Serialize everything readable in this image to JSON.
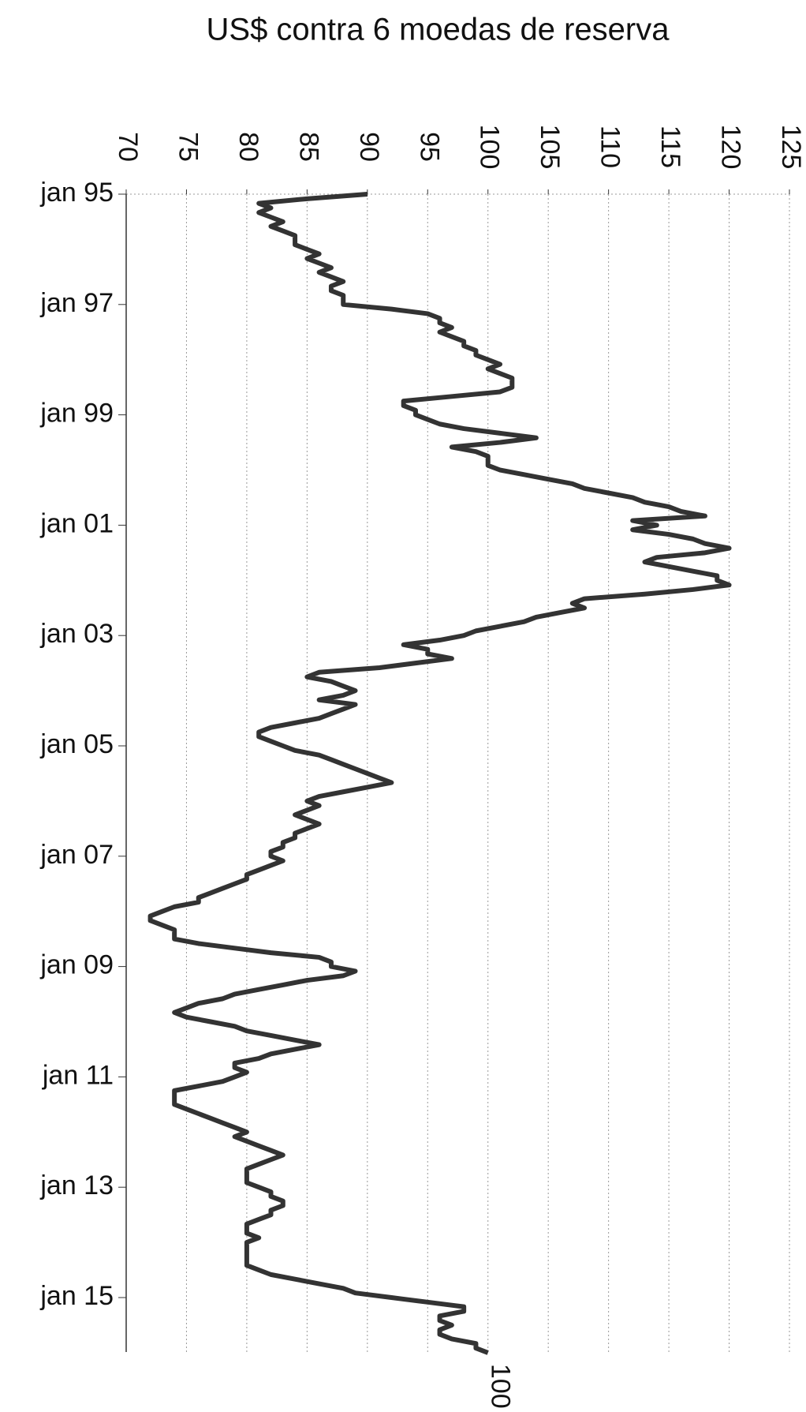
{
  "chart_data": {
    "type": "line",
    "orientation": "vertical-time",
    "title": "US$ contra 6 moedas de reserva",
    "categories": [
      "jan 95",
      null,
      null,
      null,
      null,
      null,
      null,
      null,
      null,
      null,
      null,
      null,
      null,
      null,
      null,
      null,
      null,
      null,
      null,
      null,
      null,
      null,
      null,
      null,
      "jan 97",
      null,
      null,
      null,
      null,
      null,
      null,
      null,
      null,
      null,
      null,
      null,
      null,
      null,
      null,
      null,
      null,
      null,
      null,
      null,
      null,
      null,
      null,
      null,
      "jan 99",
      null,
      null,
      null,
      null,
      null,
      null,
      null,
      null,
      null,
      null,
      null,
      null,
      null,
      null,
      null,
      null,
      null,
      null,
      null,
      null,
      null,
      null,
      null,
      "jan 01",
      null,
      null,
      null,
      null,
      null,
      null,
      null,
      null,
      null,
      null,
      null,
      null,
      null,
      null,
      null,
      null,
      null,
      null,
      null,
      null,
      null,
      null,
      null,
      "jan 03",
      null,
      null,
      null,
      null,
      null,
      null,
      null,
      null,
      null,
      null,
      null,
      null,
      null,
      null,
      null,
      null,
      null,
      null,
      null,
      null,
      null,
      null,
      null,
      "jan 05",
      null,
      null,
      null,
      null,
      null,
      null,
      null,
      null,
      null,
      null,
      null,
      null,
      null,
      null,
      null,
      null,
      null,
      null,
      null,
      null,
      null,
      null,
      null,
      "jan 07",
      null,
      null,
      null,
      null,
      null,
      null,
      null,
      null,
      null,
      null,
      null,
      null,
      null,
      null,
      null,
      null,
      null,
      null,
      null,
      null,
      null,
      null,
      null,
      "jan 09",
      null,
      null,
      null,
      null,
      null,
      null,
      null,
      null,
      null,
      null,
      null,
      null,
      null,
      null,
      null,
      null,
      null,
      null,
      null,
      null,
      null,
      null,
      null,
      "jan 11",
      null,
      null,
      null,
      null,
      null,
      null,
      null,
      null,
      null,
      null,
      null,
      null,
      null,
      null,
      null,
      null,
      null,
      null,
      null,
      null,
      null,
      null,
      null,
      "jan 13",
      null,
      null,
      null,
      null,
      null,
      null,
      null,
      null,
      null,
      null,
      null,
      null,
      null,
      null,
      null,
      null,
      null,
      null,
      null,
      null,
      null,
      null,
      null,
      "jan 15",
      null,
      null,
      null,
      null,
      null,
      null,
      null,
      null,
      null,
      null,
      null,
      null
    ],
    "values": [
      90,
      85,
      81,
      82,
      81,
      82,
      83,
      82,
      83,
      84,
      84,
      84,
      85,
      86,
      85,
      86,
      87,
      86,
      87,
      88,
      87,
      87,
      88,
      88,
      88,
      92,
      95,
      96,
      96,
      97,
      96,
      97,
      98,
      98,
      99,
      99,
      100,
      101,
      100,
      101,
      102,
      102,
      102,
      101,
      97,
      93,
      93,
      94,
      94,
      95,
      96,
      98,
      101,
      104,
      101,
      97,
      99,
      100,
      100,
      100,
      101,
      103,
      105,
      107,
      108,
      110,
      112,
      113,
      115,
      116,
      118,
      112,
      114,
      112,
      115,
      117,
      118,
      120,
      118,
      114,
      113,
      115,
      117,
      119,
      119,
      120,
      117,
      113,
      108,
      107,
      108,
      106,
      104,
      103,
      101,
      99,
      98,
      96,
      93,
      95,
      95,
      97,
      94,
      91,
      86,
      85,
      87,
      88,
      89,
      88,
      86,
      89,
      88,
      87,
      86,
      84,
      82,
      81,
      81,
      82,
      83,
      84,
      86,
      87,
      88,
      89,
      90,
      91,
      92,
      90,
      88,
      86,
      85,
      86,
      85,
      84,
      85,
      86,
      85,
      84,
      84,
      83,
      83,
      82,
      82,
      83,
      82,
      81,
      80,
      80,
      79,
      78,
      77,
      76,
      76,
      74,
      73,
      72,
      72,
      73,
      74,
      74,
      74,
      76,
      79,
      82,
      86,
      87,
      87,
      89,
      88,
      85,
      83,
      81,
      79,
      78,
      76,
      75,
      74,
      75,
      77,
      79,
      80,
      82,
      84,
      86,
      84,
      82,
      81,
      79,
      79,
      80,
      79,
      78,
      76,
      74,
      74,
      74,
      74,
      75,
      76,
      77,
      78,
      79,
      80,
      79,
      80,
      81,
      82,
      83,
      82,
      81,
      80,
      80,
      80,
      80,
      81,
      82,
      82,
      83,
      83,
      82,
      82,
      81,
      80,
      80,
      80,
      81,
      80,
      80,
      80,
      80,
      80,
      80,
      81,
      82,
      84,
      86,
      88,
      89,
      92,
      95,
      98,
      98,
      96,
      96,
      97,
      96,
      96,
      97,
      99,
      99,
      100
    ],
    "color": "#333333",
    "xlim": [
      70,
      125
    ],
    "xticks": [
      70,
      75,
      80,
      85,
      90,
      95,
      100,
      105,
      110,
      115,
      120,
      125
    ],
    "grid": true
  }
}
